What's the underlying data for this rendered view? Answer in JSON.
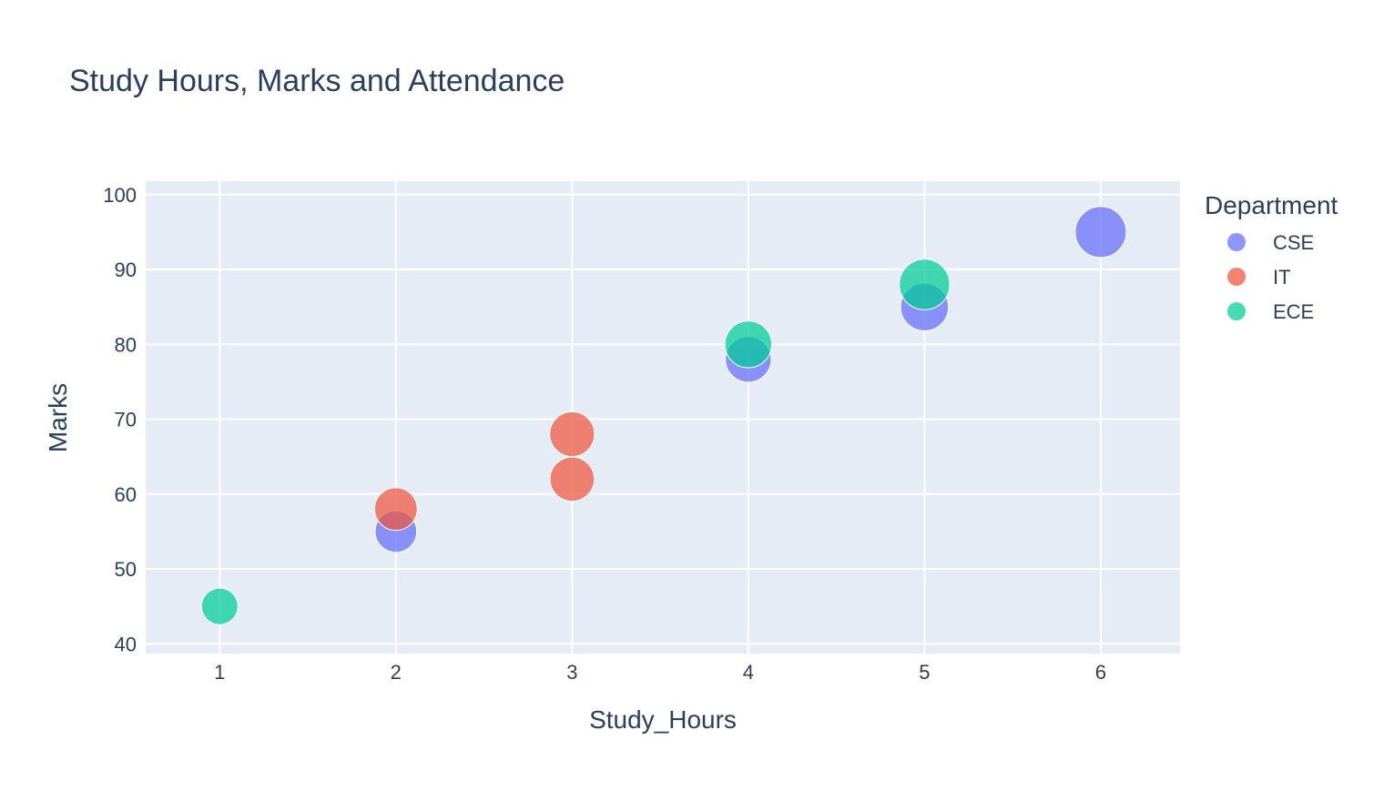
{
  "chart_data": {
    "type": "scatter",
    "title": "Study Hours, Marks and Attendance",
    "xlabel": "Study_Hours",
    "ylabel": "Marks",
    "xlim": [
      0.58,
      6.45
    ],
    "ylim": [
      38.7,
      101.8
    ],
    "xticks": [
      1,
      2,
      3,
      4,
      5,
      6
    ],
    "yticks": [
      40,
      50,
      60,
      70,
      80,
      90,
      100
    ],
    "grid": true,
    "legend_position": "right",
    "legend_title": "Department",
    "size_encoding": "Attendance",
    "series": [
      {
        "name": "CSE",
        "color": "#636efa",
        "points": [
          {
            "x": 2,
            "y": 55,
            "size": 80
          },
          {
            "x": 4,
            "y": 78,
            "size": 88
          },
          {
            "x": 5,
            "y": 85,
            "size": 92
          },
          {
            "x": 6,
            "y": 95,
            "size": 98
          }
        ]
      },
      {
        "name": "IT",
        "color": "#ef553b",
        "points": [
          {
            "x": 2,
            "y": 58,
            "size": 82
          },
          {
            "x": 3,
            "y": 62,
            "size": 85
          },
          {
            "x": 3,
            "y": 68,
            "size": 86
          }
        ]
      },
      {
        "name": "ECE",
        "color": "#00cc96",
        "points": [
          {
            "x": 1,
            "y": 45,
            "size": 70
          },
          {
            "x": 4,
            "y": 80,
            "size": 90
          },
          {
            "x": 5,
            "y": 88,
            "size": 97
          }
        ]
      }
    ]
  }
}
